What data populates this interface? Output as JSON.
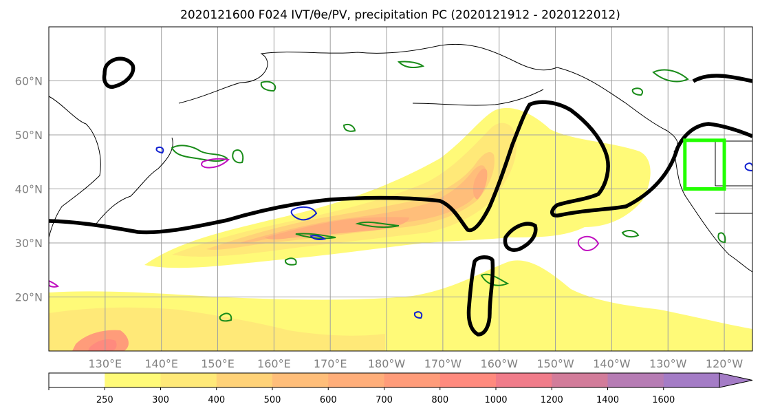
{
  "title": "2020121600 F024 IVT/θe/PV, precipitation PC (2020121912 - 2020122012)",
  "map": {
    "lon_range": [
      120,
      245
    ],
    "lat_range": [
      10,
      70
    ],
    "lon_ticks": [
      {
        "lon": 130,
        "label": "130°E"
      },
      {
        "lon": 140,
        "label": "140°E"
      },
      {
        "lon": 150,
        "label": "150°E"
      },
      {
        "lon": 160,
        "label": "160°E"
      },
      {
        "lon": 170,
        "label": "170°E"
      },
      {
        "lon": 180,
        "label": "180°W"
      },
      {
        "lon": 190,
        "label": "170°W"
      },
      {
        "lon": 200,
        "label": "160°W"
      },
      {
        "lon": 210,
        "label": "150°W"
      },
      {
        "lon": 220,
        "label": "140°W"
      },
      {
        "lon": 230,
        "label": "130°W"
      },
      {
        "lon": 240,
        "label": "120°W"
      }
    ],
    "lat_ticks": [
      {
        "lat": 20,
        "label": "20°N"
      },
      {
        "lat": 30,
        "label": "30°N"
      },
      {
        "lat": 40,
        "label": "40°N"
      },
      {
        "lat": 50,
        "label": "50°N"
      },
      {
        "lat": 60,
        "label": "60°N"
      }
    ],
    "highlight_box": {
      "lon": [
        233,
        240
      ],
      "lat": [
        40,
        49
      ],
      "color": "#22ff00"
    }
  },
  "colorbar": {
    "levels": [
      0,
      250,
      300,
      400,
      500,
      600,
      700,
      800,
      1000,
      1200,
      1400,
      1600
    ],
    "labels": [
      "250",
      "300",
      "400",
      "500",
      "600",
      "700",
      "800",
      "1000",
      "1200",
      "1400",
      "1600"
    ],
    "colors": [
      "#ffffff",
      "#fffa78",
      "#ffe978",
      "#ffd278",
      "#ffbe7a",
      "#ffae7a",
      "#ff9c7a",
      "#ff8a7e",
      "#f07c8a",
      "#d27c9a",
      "#b67cb4",
      "#a47cc6"
    ],
    "extend": "max"
  }
}
